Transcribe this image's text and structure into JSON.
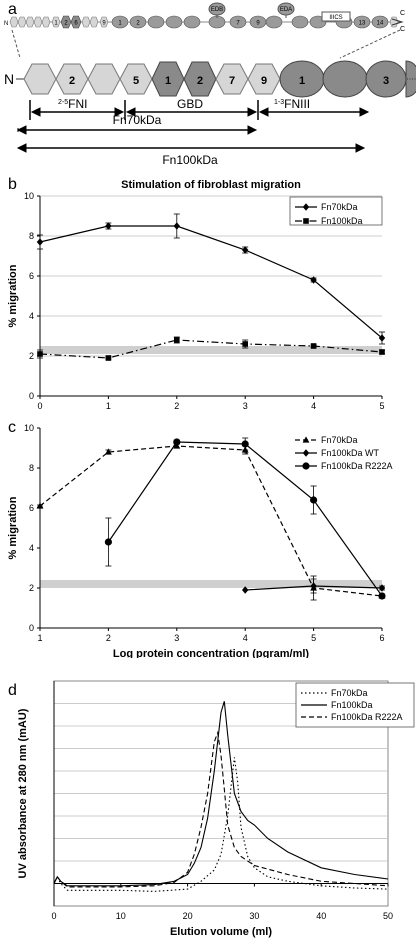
{
  "panels": {
    "a": {
      "letter": "a",
      "top_labels": {
        "n": "N",
        "c": "C",
        "edb": "EDB",
        "eda": "EDA",
        "iiics": "IIICS",
        "d13": "13",
        "d14": "14"
      },
      "top_strip": [
        "1",
        "2",
        "6",
        "1",
        "2",
        "9",
        "1",
        "2",
        "7",
        "9",
        "10",
        "13",
        "14"
      ],
      "detail_labels": {
        "n": "N",
        "fni2": "2",
        "fni5": "5",
        "fni1": "1",
        "fni2b": "2",
        "fnii7": "7",
        "fnii9": "9",
        "fniii1": "1",
        "fniii3": "3"
      },
      "fragments": {
        "fni": {
          "pre": "2-5",
          "main": "FNI"
        },
        "gbd": "GBD",
        "fniii": {
          "pre": "1-3",
          "main": "FNIII"
        },
        "fn70": "Fn70kDa",
        "fn100": "Fn100kDa"
      }
    },
    "b": {
      "letter": "b"
    },
    "c": {
      "letter": "c"
    },
    "d": {
      "letter": "d"
    }
  },
  "chart_data": [
    {
      "id": "b",
      "type": "line",
      "title": "Stimulation of fibroblast migration",
      "xlabel": "Log protein concentration (pgram/ml)",
      "ylabel": "% migration",
      "xlim": [
        0,
        5
      ],
      "ylim": [
        0,
        10
      ],
      "xticks": [
        0,
        1,
        2,
        3,
        4,
        5
      ],
      "yticks": [
        0,
        2,
        4,
        6,
        8,
        10
      ],
      "grid": true,
      "legend_position": "top-right",
      "shaded_band": [
        2.1,
        2.5
      ],
      "series": [
        {
          "name": "Fn70kDa",
          "marker": "diamond",
          "line": "solid",
          "x": [
            0,
            1,
            2,
            3,
            4,
            5
          ],
          "y": [
            7.7,
            8.5,
            8.5,
            7.3,
            5.8,
            2.9
          ],
          "err": [
            0.35,
            0.15,
            0.6,
            0.15,
            0.1,
            0.3
          ]
        },
        {
          "name": "Fn100kDa",
          "marker": "square",
          "line": "dashdot",
          "x": [
            0,
            1,
            2,
            3,
            4,
            5
          ],
          "y": [
            2.1,
            1.9,
            2.8,
            2.6,
            2.5,
            2.2
          ],
          "err": [
            0.2,
            0.05,
            0.15,
            0.2,
            0.05,
            0.1
          ]
        }
      ]
    },
    {
      "id": "c",
      "type": "line",
      "title": "",
      "xlabel": "Log protein concentration (pgram/ml)",
      "ylabel": "% migration",
      "xlim": [
        1,
        6
      ],
      "ylim": [
        0,
        10
      ],
      "xticks": [
        1,
        2,
        3,
        4,
        5,
        6
      ],
      "yticks": [
        0,
        2,
        4,
        6,
        8,
        10
      ],
      "grid": false,
      "legend_position": "top-right",
      "shaded_band": [
        2.0,
        2.4
      ],
      "series": [
        {
          "name": "Fn70kDa",
          "marker": "triangle",
          "line": "dashed",
          "x": [
            1,
            2,
            3,
            4,
            5,
            6
          ],
          "y": [
            6.1,
            8.8,
            9.1,
            8.9,
            2.0,
            1.6
          ],
          "err": [
            0.05,
            0.1,
            0.1,
            0.2,
            0.6,
            0.1
          ]
        },
        {
          "name": "Fn100kDa WT",
          "marker": "diamond",
          "line": "solid",
          "x": [
            4,
            5,
            6
          ],
          "y": [
            1.9,
            2.1,
            2.0
          ],
          "err": [
            0,
            0.35,
            0.1
          ]
        },
        {
          "name": "Fn100kDa R222A",
          "marker": "circle",
          "line": "solid",
          "x": [
            2,
            3,
            4,
            5,
            6
          ],
          "y": [
            4.3,
            9.3,
            9.2,
            6.4,
            1.6
          ],
          "err": [
            1.2,
            0.1,
            0.3,
            0.7,
            0.1
          ]
        }
      ]
    },
    {
      "id": "d",
      "type": "line",
      "title": "",
      "xlabel": "Elution volume (ml)",
      "ylabel": "UV absorbance at 280 nm (mAU)",
      "xlim": [
        0,
        50
      ],
      "ylim": [
        -1,
        9
      ],
      "xticks": [
        0,
        10,
        20,
        30,
        40,
        50
      ],
      "yticks": [],
      "grid": true,
      "legend_position": "top-right",
      "series": [
        {
          "name": "Fn70kDa",
          "line": "dotted",
          "x": [
            0,
            0.5,
            1,
            2,
            5,
            10,
            15,
            20,
            22,
            24,
            25,
            26,
            26.5,
            27,
            27.5,
            28,
            29,
            30,
            32,
            35,
            40,
            45,
            50
          ],
          "y": [
            0,
            0.3,
            0,
            -0.3,
            -0.3,
            -0.3,
            -0.35,
            -0.25,
            0.1,
            0.6,
            1.3,
            3.0,
            4.3,
            5.6,
            4.5,
            2.5,
            1.2,
            0.7,
            0.3,
            0.1,
            -0.1,
            -0.2,
            -0.25
          ]
        },
        {
          "name": "Fn100kDa",
          "line": "solid",
          "x": [
            0,
            0.5,
            1,
            2,
            5,
            10,
            15,
            18,
            20,
            21,
            22,
            23,
            24,
            25,
            25.5,
            26,
            27,
            28,
            29,
            30,
            32,
            35,
            40,
            45,
            50
          ],
          "y": [
            0,
            0.3,
            0.1,
            -0.1,
            -0.1,
            -0.1,
            -0.05,
            0.1,
            0.4,
            0.9,
            1.6,
            2.9,
            5.0,
            7.6,
            8.1,
            6.6,
            4.0,
            3.2,
            2.8,
            2.6,
            2.0,
            1.4,
            0.7,
            0.4,
            0.2
          ]
        },
        {
          "name": "Fn100kDa R222A",
          "line": "dashed",
          "x": [
            0,
            0.5,
            1,
            2,
            5,
            10,
            15,
            18,
            20,
            21,
            22,
            23,
            24,
            24.5,
            25,
            25.5,
            26,
            27,
            28,
            30,
            35,
            40,
            45,
            50
          ],
          "y": [
            0,
            0.3,
            0.1,
            -0.15,
            -0.15,
            -0.15,
            -0.1,
            0.05,
            0.5,
            1.3,
            2.5,
            4.0,
            6.3,
            6.7,
            5.7,
            4.2,
            2.6,
            1.6,
            1.2,
            0.8,
            0.4,
            0.1,
            0,
            -0.1
          ]
        }
      ]
    }
  ]
}
